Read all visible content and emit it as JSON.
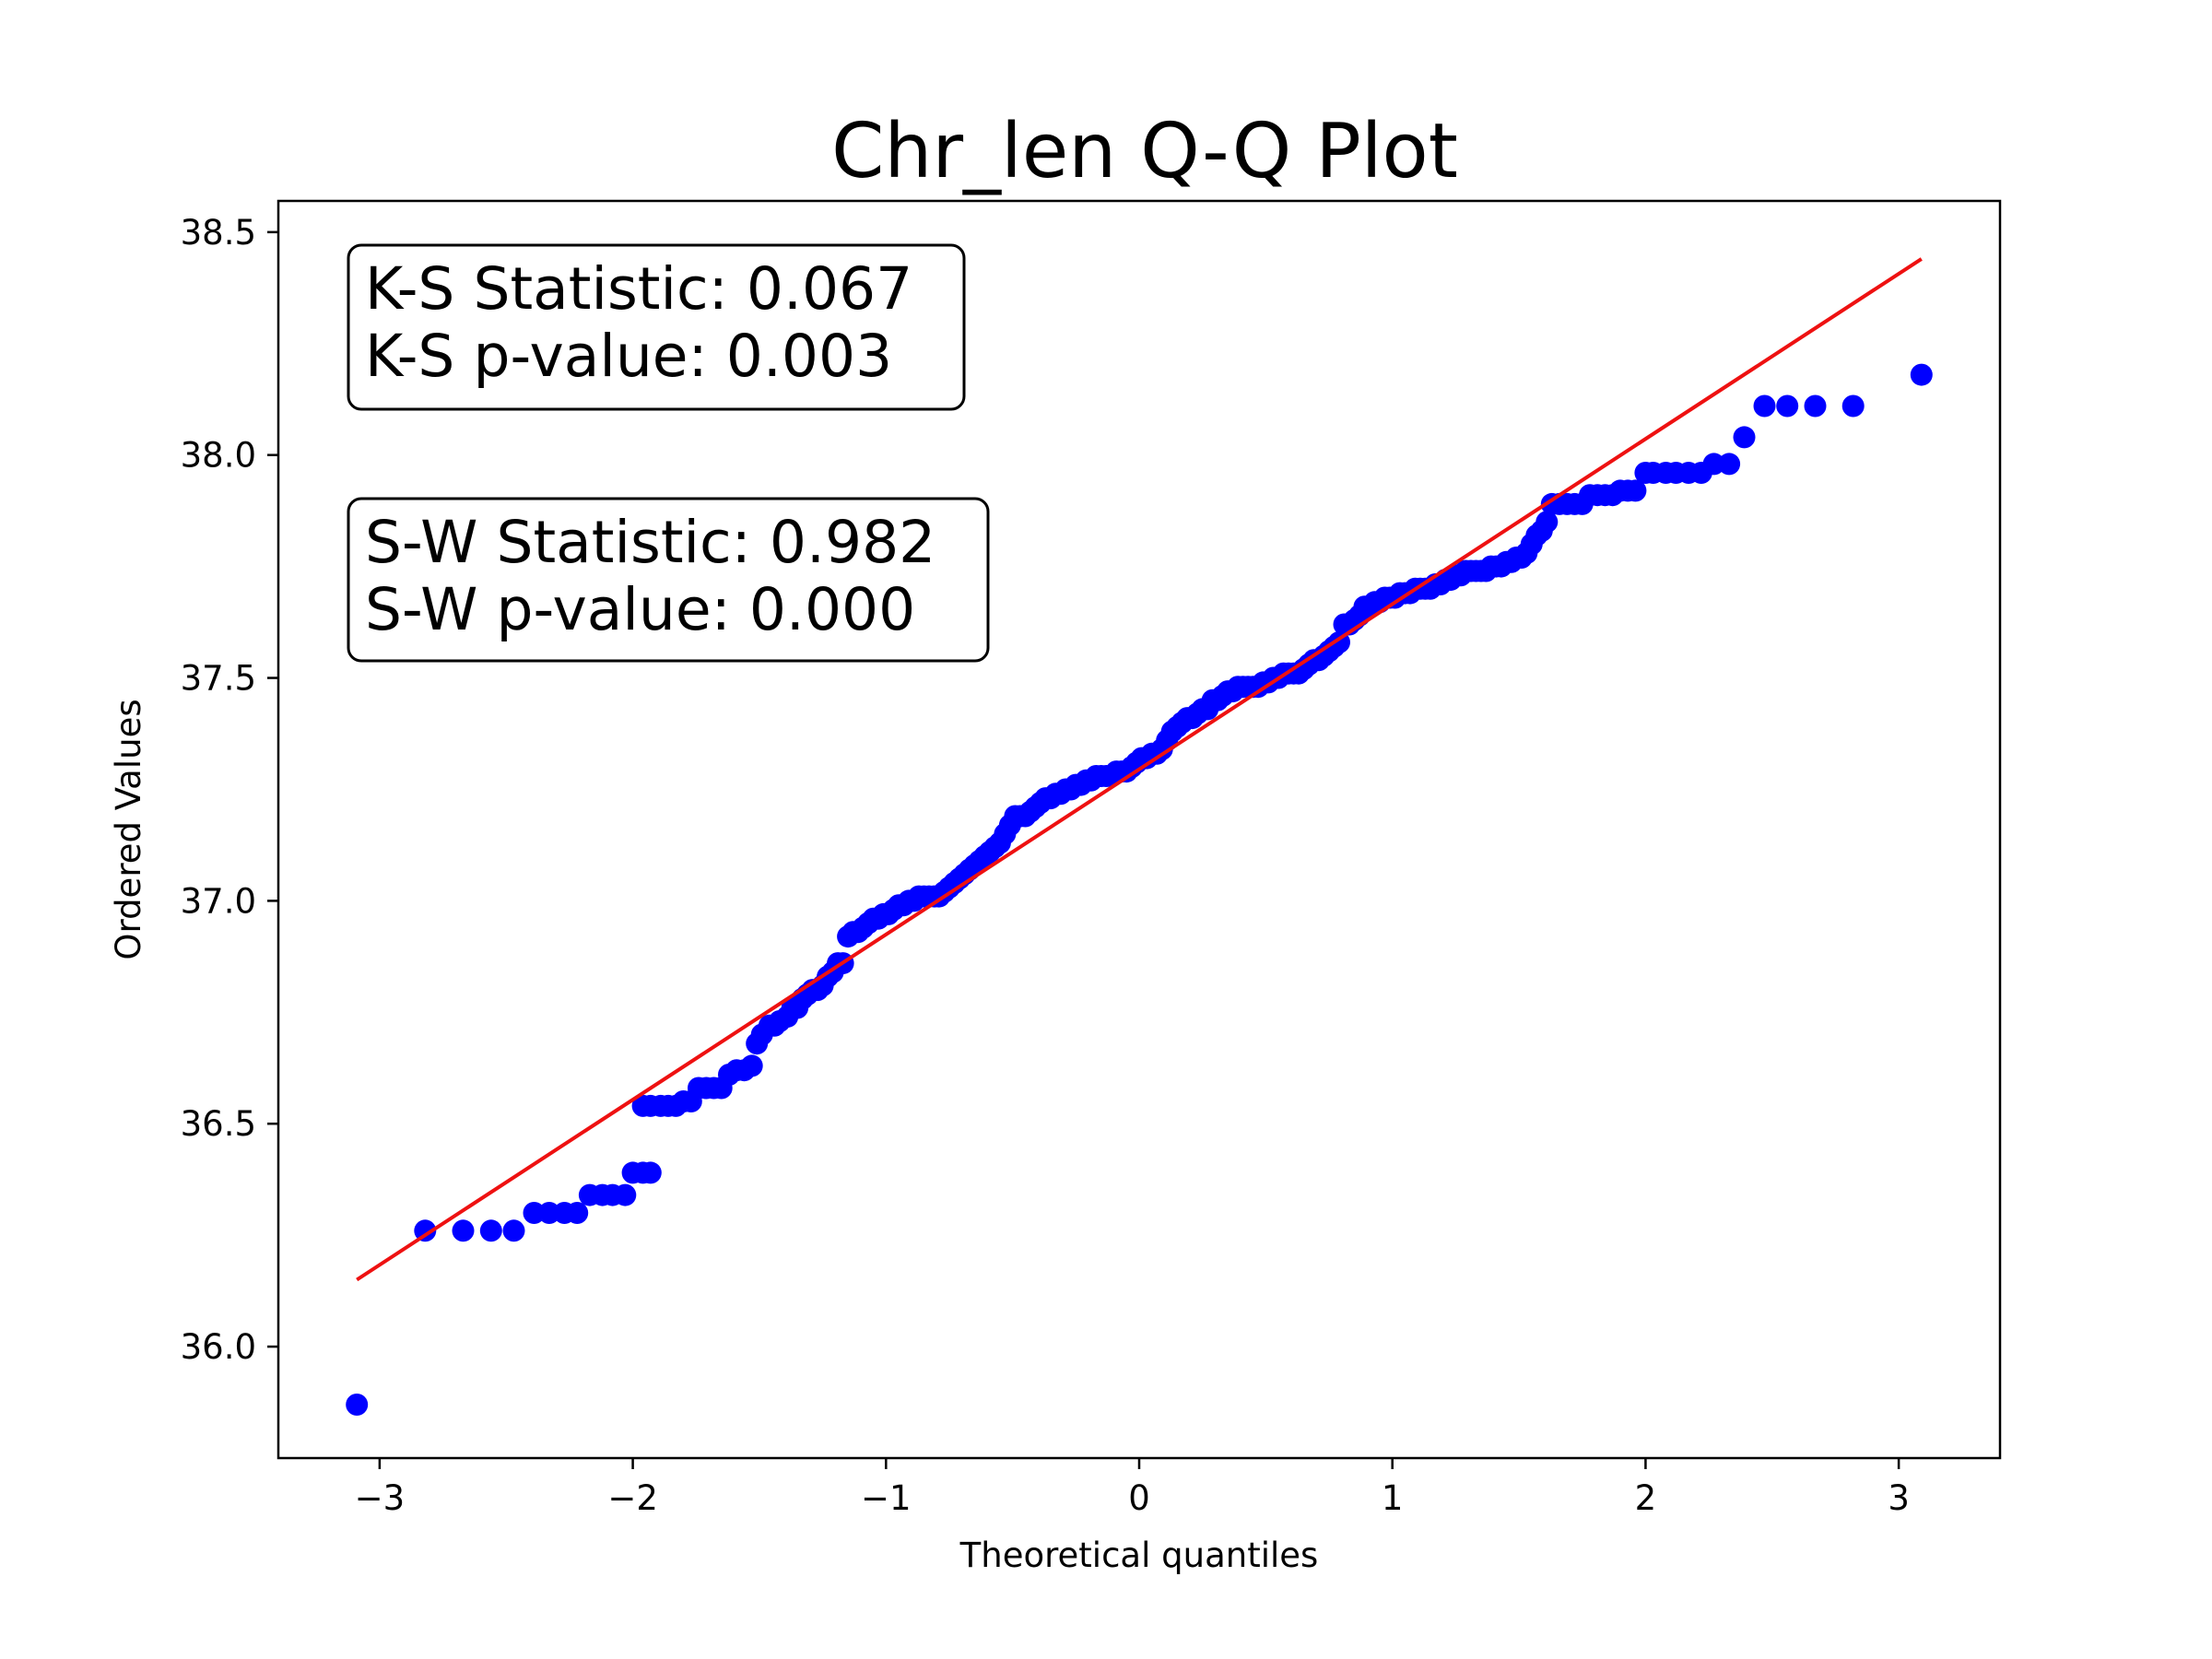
{
  "chart_data": {
    "type": "scatter",
    "title": "Chr_len Q-Q Plot",
    "xlabel": "Theoretical quantiles",
    "ylabel": "Ordered Values",
    "xlim": [
      -3.4,
      3.4
    ],
    "ylim": [
      35.75,
      38.57
    ],
    "x_ticks": [
      {
        "value": -3,
        "label": "−3"
      },
      {
        "value": -2,
        "label": "−2"
      },
      {
        "value": -1,
        "label": "−1"
      },
      {
        "value": 0,
        "label": "0"
      },
      {
        "value": 1,
        "label": "1"
      },
      {
        "value": 2,
        "label": "2"
      },
      {
        "value": 3,
        "label": "3"
      }
    ],
    "y_ticks": [
      {
        "value": 36.0,
        "label": "36.0"
      },
      {
        "value": 36.5,
        "label": "36.5"
      },
      {
        "value": 37.0,
        "label": "37.0"
      },
      {
        "value": 37.5,
        "label": "37.5"
      },
      {
        "value": 38.0,
        "label": "38.0"
      },
      {
        "value": 38.5,
        "label": "38.5"
      }
    ],
    "grid": false,
    "marker_color": "#0000ff",
    "line_color": "#ee1111",
    "fit_line": {
      "x": [
        -3.09,
        3.09
      ],
      "y": [
        36.15,
        38.44
      ]
    },
    "series": [
      {
        "points": [
          [
            -3.09,
            35.87
          ],
          [
            -2.82,
            36.26
          ],
          [
            -2.67,
            36.26
          ],
          [
            -2.56,
            36.26
          ],
          [
            -2.47,
            36.26
          ],
          [
            -2.39,
            36.3
          ],
          [
            -2.33,
            36.3
          ],
          [
            -2.27,
            36.3
          ],
          [
            -2.22,
            36.3
          ],
          [
            -2.17,
            36.34
          ],
          [
            -2.12,
            36.34
          ],
          [
            -2.08,
            36.34
          ],
          [
            -2.03,
            36.34
          ],
          [
            -2.0,
            36.39
          ],
          [
            -1.96,
            36.39
          ],
          [
            -1.93,
            36.39
          ],
          [
            -1.96,
            36.54
          ],
          [
            -1.93,
            36.54
          ],
          [
            -1.89,
            36.54
          ],
          [
            -1.86,
            36.54
          ],
          [
            -1.83,
            36.54
          ],
          [
            -1.8,
            36.55
          ],
          [
            -1.77,
            36.55
          ],
          [
            -1.74,
            36.58
          ],
          [
            -1.71,
            36.58
          ],
          [
            -1.68,
            36.58
          ],
          [
            -1.65,
            36.58
          ],
          [
            -1.62,
            36.61
          ],
          [
            -1.59,
            36.62
          ],
          [
            -1.56,
            36.62
          ],
          [
            -1.53,
            36.63
          ],
          [
            -1.51,
            36.68
          ],
          [
            -1.49,
            36.7
          ],
          [
            -1.46,
            36.72
          ],
          [
            -1.44,
            36.72
          ],
          [
            -1.42,
            36.73
          ],
          [
            -1.39,
            36.74
          ],
          [
            -1.37,
            36.76
          ],
          [
            -1.35,
            36.76
          ],
          [
            -1.33,
            36.78
          ],
          [
            -1.31,
            36.79
          ],
          [
            -1.29,
            36.8
          ],
          [
            -1.27,
            36.8
          ],
          [
            -1.25,
            36.81
          ],
          [
            -1.23,
            36.83
          ],
          [
            -1.21,
            36.84
          ],
          [
            -1.19,
            36.86
          ],
          [
            -1.17,
            36.86
          ],
          [
            -1.15,
            36.92
          ],
          [
            -1.13,
            36.93
          ],
          [
            -1.11,
            36.93
          ],
          [
            -1.09,
            36.94
          ],
          [
            -1.07,
            36.95
          ],
          [
            -1.05,
            36.96
          ],
          [
            -1.03,
            36.96
          ],
          [
            -1.01,
            36.97
          ],
          [
            -0.99,
            36.97
          ],
          [
            -0.97,
            36.98
          ],
          [
            -0.95,
            36.99
          ],
          [
            -0.93,
            36.99
          ],
          [
            -0.91,
            37.0
          ],
          [
            -0.89,
            37.0
          ],
          [
            -0.87,
            37.01
          ],
          [
            -0.85,
            37.01
          ],
          [
            -0.83,
            37.01
          ],
          [
            -0.81,
            37.01
          ],
          [
            -0.79,
            37.01
          ],
          [
            -0.77,
            37.02
          ],
          [
            -0.75,
            37.03
          ],
          [
            -0.73,
            37.04
          ],
          [
            -0.71,
            37.05
          ],
          [
            -0.69,
            37.06
          ],
          [
            -0.67,
            37.07
          ],
          [
            -0.65,
            37.08
          ],
          [
            -0.63,
            37.09
          ],
          [
            -0.61,
            37.1
          ],
          [
            -0.59,
            37.11
          ],
          [
            -0.57,
            37.12
          ],
          [
            -0.55,
            37.13
          ],
          [
            -0.53,
            37.15
          ],
          [
            -0.51,
            37.17
          ],
          [
            -0.49,
            37.19
          ],
          [
            -0.47,
            37.19
          ],
          [
            -0.45,
            37.19
          ],
          [
            -0.43,
            37.2
          ],
          [
            -0.41,
            37.21
          ],
          [
            -0.39,
            37.22
          ],
          [
            -0.37,
            37.23
          ],
          [
            -0.35,
            37.23
          ],
          [
            -0.33,
            37.24
          ],
          [
            -0.31,
            37.24
          ],
          [
            -0.29,
            37.25
          ],
          [
            -0.27,
            37.25
          ],
          [
            -0.25,
            37.26
          ],
          [
            -0.23,
            37.26
          ],
          [
            -0.21,
            37.27
          ],
          [
            -0.19,
            37.27
          ],
          [
            -0.17,
            37.28
          ],
          [
            -0.15,
            37.28
          ],
          [
            -0.13,
            37.28
          ],
          [
            -0.11,
            37.28
          ],
          [
            -0.09,
            37.29
          ],
          [
            -0.07,
            37.29
          ],
          [
            -0.05,
            37.29
          ],
          [
            -0.03,
            37.3
          ],
          [
            -0.01,
            37.31
          ],
          [
            0.01,
            37.32
          ],
          [
            0.03,
            37.32
          ],
          [
            0.05,
            37.33
          ],
          [
            0.07,
            37.33
          ],
          [
            0.09,
            37.34
          ],
          [
            0.11,
            37.36
          ],
          [
            0.13,
            37.38
          ],
          [
            0.15,
            37.39
          ],
          [
            0.17,
            37.4
          ],
          [
            0.19,
            37.41
          ],
          [
            0.21,
            37.41
          ],
          [
            0.23,
            37.42
          ],
          [
            0.25,
            37.43
          ],
          [
            0.27,
            37.43
          ],
          [
            0.29,
            37.45
          ],
          [
            0.31,
            37.45
          ],
          [
            0.33,
            37.46
          ],
          [
            0.35,
            37.47
          ],
          [
            0.37,
            37.47
          ],
          [
            0.39,
            37.48
          ],
          [
            0.41,
            37.48
          ],
          [
            0.43,
            37.48
          ],
          [
            0.45,
            37.48
          ],
          [
            0.47,
            37.48
          ],
          [
            0.49,
            37.49
          ],
          [
            0.51,
            37.49
          ],
          [
            0.53,
            37.5
          ],
          [
            0.55,
            37.5
          ],
          [
            0.57,
            37.51
          ],
          [
            0.59,
            37.51
          ],
          [
            0.61,
            37.51
          ],
          [
            0.63,
            37.51
          ],
          [
            0.65,
            37.52
          ],
          [
            0.67,
            37.53
          ],
          [
            0.69,
            37.54
          ],
          [
            0.71,
            37.54
          ],
          [
            0.73,
            37.55
          ],
          [
            0.75,
            37.56
          ],
          [
            0.77,
            37.57
          ],
          [
            0.79,
            37.58
          ],
          [
            0.81,
            37.62
          ],
          [
            0.83,
            37.62
          ],
          [
            0.85,
            37.63
          ],
          [
            0.87,
            37.64
          ],
          [
            0.89,
            37.66
          ],
          [
            0.91,
            37.66
          ],
          [
            0.93,
            37.67
          ],
          [
            0.95,
            37.67
          ],
          [
            0.97,
            37.68
          ],
          [
            0.99,
            37.68
          ],
          [
            1.01,
            37.68
          ],
          [
            1.03,
            37.69
          ],
          [
            1.05,
            37.69
          ],
          [
            1.07,
            37.69
          ],
          [
            1.09,
            37.7
          ],
          [
            1.11,
            37.7
          ],
          [
            1.13,
            37.7
          ],
          [
            1.15,
            37.7
          ],
          [
            1.17,
            37.71
          ],
          [
            1.19,
            37.71
          ],
          [
            1.21,
            37.72
          ],
          [
            1.23,
            37.72
          ],
          [
            1.25,
            37.73
          ],
          [
            1.27,
            37.73
          ],
          [
            1.29,
            37.74
          ],
          [
            1.31,
            37.74
          ],
          [
            1.33,
            37.74
          ],
          [
            1.35,
            37.74
          ],
          [
            1.37,
            37.74
          ],
          [
            1.39,
            37.75
          ],
          [
            1.41,
            37.75
          ],
          [
            1.43,
            37.75
          ],
          [
            1.45,
            37.76
          ],
          [
            1.47,
            37.76
          ],
          [
            1.49,
            37.77
          ],
          [
            1.51,
            37.77
          ],
          [
            1.53,
            37.78
          ],
          [
            1.55,
            37.8
          ],
          [
            1.57,
            37.82
          ],
          [
            1.59,
            37.83
          ],
          [
            1.61,
            37.85
          ],
          [
            1.63,
            37.89
          ],
          [
            1.66,
            37.89
          ],
          [
            1.69,
            37.89
          ],
          [
            1.72,
            37.89
          ],
          [
            1.75,
            37.89
          ],
          [
            1.78,
            37.91
          ],
          [
            1.81,
            37.91
          ],
          [
            1.84,
            37.91
          ],
          [
            1.87,
            37.91
          ],
          [
            1.9,
            37.92
          ],
          [
            1.93,
            37.92
          ],
          [
            1.96,
            37.92
          ],
          [
            2.0,
            37.96
          ],
          [
            2.03,
            37.96
          ],
          [
            2.08,
            37.96
          ],
          [
            2.12,
            37.96
          ],
          [
            2.17,
            37.96
          ],
          [
            2.22,
            37.96
          ],
          [
            2.27,
            37.98
          ],
          [
            2.33,
            37.98
          ],
          [
            2.39,
            38.04
          ],
          [
            2.47,
            38.11
          ],
          [
            2.56,
            38.11
          ],
          [
            2.67,
            38.11
          ],
          [
            2.82,
            38.11
          ],
          [
            3.09,
            38.18
          ]
        ]
      }
    ],
    "annotations": [
      {
        "lines": [
          "K-S Statistic: 0.067",
          "K-S p-value: 0.003"
        ]
      },
      {
        "lines": [
          "S-W Statistic: 0.982",
          "S-W p-value: 0.000"
        ]
      }
    ]
  }
}
